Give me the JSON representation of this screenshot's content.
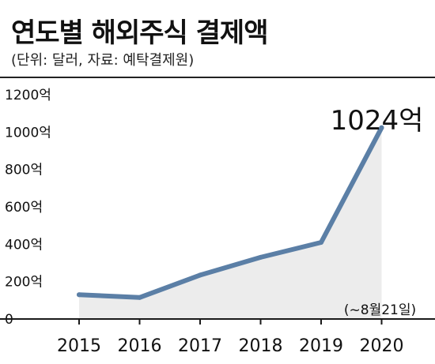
{
  "header": {
    "title": "연도별 해외주식 결제액",
    "subtitle": "(단위: 달러, 자료: 예탁결제원)"
  },
  "colors": {
    "line": "#5b7fa6",
    "area": "#ececec",
    "axis": "#1a1a1a"
  },
  "chart_data": {
    "type": "area",
    "title": "연도별 해외주식 결제액",
    "x": [
      "2015",
      "2016",
      "2017",
      "2018",
      "2019",
      "2020"
    ],
    "series": [
      {
        "values": [
          130,
          115,
          235,
          330,
          410,
          1024
        ]
      }
    ],
    "ylim": [
      0,
      1200
    ],
    "y_ticks": [
      {
        "value": 0,
        "label": "0"
      },
      {
        "value": 200,
        "label": "200억"
      },
      {
        "value": 400,
        "label": "400억"
      },
      {
        "value": 600,
        "label": "600억"
      },
      {
        "value": 800,
        "label": "800억"
      },
      {
        "value": 1000,
        "label": "1000억"
      },
      {
        "value": 1200,
        "label": "1200억"
      }
    ],
    "annotations": {
      "last_value": "1024억",
      "last_period": "(~8월21일)"
    },
    "grid": false
  }
}
